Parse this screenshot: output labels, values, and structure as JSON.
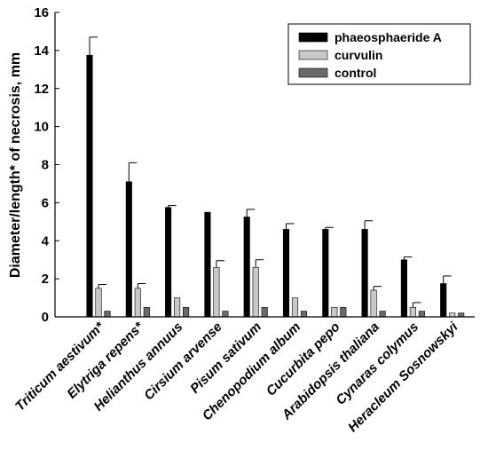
{
  "chart_data": {
    "type": "bar",
    "title": "",
    "xlabel": "",
    "ylabel": "Diameter/length* of necrosis, mm",
    "ylim": [
      0,
      16
    ],
    "yticks": [
      0,
      2,
      4,
      6,
      8,
      10,
      12,
      14,
      16
    ],
    "grid": false,
    "legend_position": "top-right",
    "categories": [
      "Triticum aestivum*",
      "Elytriga repens*",
      "Helianthus annuus",
      "Cirsium arvense",
      "Pisum sativum",
      "Chenopodium album",
      "Cucurbita pepo",
      "Arabidopsis thaliana",
      "Cynaras colymus",
      "Heracleum Sosnowskyi"
    ],
    "series": [
      {
        "name": "phaeosphaeride A",
        "color": "#000000",
        "values": [
          13.75,
          7.1,
          5.75,
          5.5,
          5.25,
          4.6,
          4.6,
          4.6,
          3.0,
          1.75
        ],
        "errors": [
          0.95,
          1.0,
          0.1,
          0.0,
          0.4,
          0.3,
          0.1,
          0.45,
          0.15,
          0.4
        ]
      },
      {
        "name": "curvulin",
        "color": "#c8c8c8",
        "values": [
          1.5,
          1.5,
          1.0,
          2.6,
          2.6,
          1.0,
          0.5,
          1.4,
          0.5,
          0.2
        ],
        "errors": [
          0.2,
          0.25,
          0.0,
          0.35,
          0.4,
          0.0,
          0.0,
          0.2,
          0.25,
          0.0
        ]
      },
      {
        "name": "control",
        "color": "#6a6a6a",
        "values": [
          0.3,
          0.5,
          0.5,
          0.3,
          0.5,
          0.3,
          0.5,
          0.3,
          0.3,
          0.2
        ],
        "errors": [
          0,
          0,
          0,
          0,
          0,
          0,
          0,
          0,
          0,
          0
        ]
      }
    ]
  }
}
